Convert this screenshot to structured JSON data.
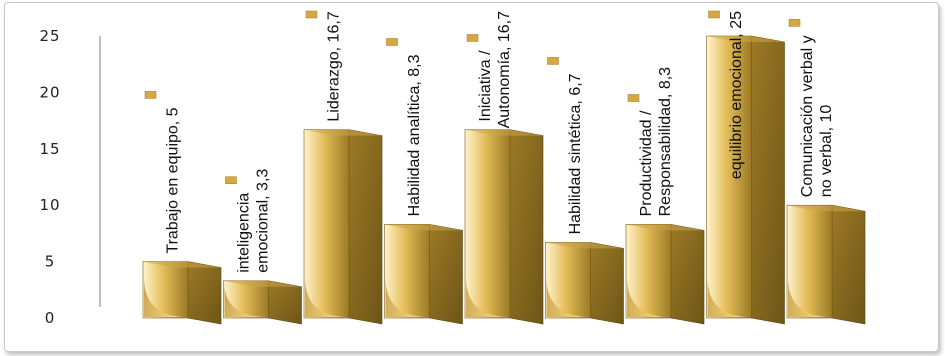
{
  "chart_data": {
    "type": "bar",
    "title": "",
    "xlabel": "",
    "ylabel": "",
    "ylim": [
      0,
      25
    ],
    "y_ticks": [
      "0",
      "5",
      "10",
      "15",
      "20",
      "25"
    ],
    "grid": false,
    "legend": "none",
    "bar_style": "3d-gold",
    "categories": [
      "Trabajo en equipo",
      "inteligencia emocional",
      "Liderazgo",
      "Habilidad analítica",
      "Iniciativa / Autonomía",
      "Habilidad sintética",
      "Productividad / Responsabilidad",
      "equilibrio emocional",
      "Comunicación verbal y no verbal"
    ],
    "values": [
      5,
      3.3,
      16.7,
      8.3,
      16.7,
      6.7,
      8.3,
      25,
      10
    ],
    "data_labels": [
      [
        "Trabajo en equipo, 5"
      ],
      [
        "inteligencia",
        "emocional, 3,3"
      ],
      [
        "Liderazgo, 16,7"
      ],
      [
        "Habilidad analítica, 8,3"
      ],
      [
        "Iniciativa /",
        "Autonomía, 16,7"
      ],
      [
        "Habilidad sintética, 6,7"
      ],
      [
        "Productividad /",
        "Responsabilidad, 8,3"
      ],
      [
        "equilibrio emocional, 25"
      ],
      [
        "Comunicación verbal y",
        "no verbal, 10"
      ]
    ],
    "colors": {
      "bar_light": "#fff3cf",
      "bar_mid": "#e3bd58",
      "bar_dark": "#9c7a25",
      "side_dark": "#6e5518",
      "marker": "#d4a93f"
    }
  }
}
